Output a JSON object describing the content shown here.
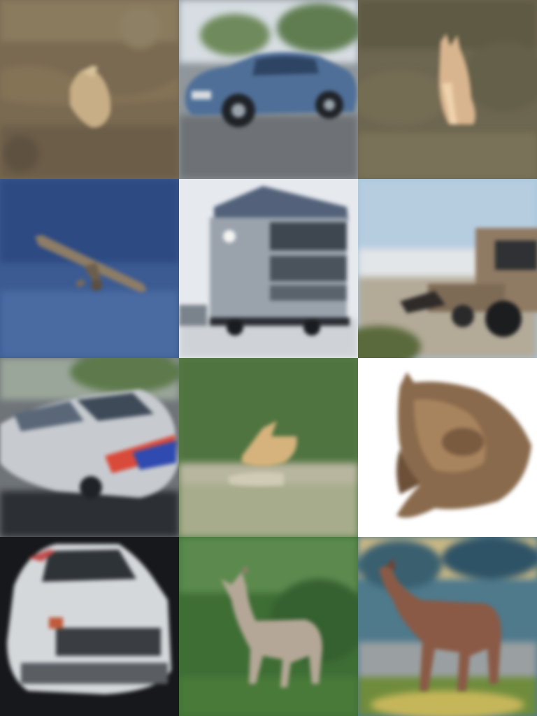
{
  "grid": {
    "rows": 4,
    "cols": 3,
    "tiles": [
      {
        "row": 0,
        "col": 0,
        "subject": "bird-on-dry-grass",
        "colors": {
          "bg": "#7a6a52",
          "subject": "#c8ae86"
        }
      },
      {
        "row": 0,
        "col": 1,
        "subject": "blue-car-on-road",
        "colors": {
          "bg": "#8f979c",
          "subject": "#4f6f98"
        }
      },
      {
        "row": 0,
        "col": 2,
        "subject": "animal-sitting-in-grass",
        "colors": {
          "bg": "#6d6650",
          "subject": "#d9b58f"
        }
      },
      {
        "row": 1,
        "col": 0,
        "subject": "airplane-in-blue-sky",
        "colors": {
          "bg": "#3c5b93",
          "subject": "#8e7d66"
        }
      },
      {
        "row": 1,
        "col": 1,
        "subject": "box-truck",
        "colors": {
          "bg": "#e6e9ee",
          "subject": "#9aa2ac"
        }
      },
      {
        "row": 1,
        "col": 2,
        "subject": "truck-on-beach",
        "colors": {
          "bg": "#a9c3d8",
          "subject": "#8f7a63"
        }
      },
      {
        "row": 2,
        "col": 0,
        "subject": "silver-police-car",
        "colors": {
          "bg": "#6f7479",
          "subject": "#c7cbd0"
        }
      },
      {
        "row": 2,
        "col": 1,
        "subject": "bird-in-green-field",
        "colors": {
          "bg": "#5c7d4a",
          "subject": "#d6b37d"
        }
      },
      {
        "row": 2,
        "col": 2,
        "subject": "cat-on-white",
        "colors": {
          "bg": "#ffffff",
          "subject": "#8a6a4c"
        }
      },
      {
        "row": 3,
        "col": 0,
        "subject": "white-car-front",
        "colors": {
          "bg": "#16181b",
          "subject": "#d5d8db"
        }
      },
      {
        "row": 3,
        "col": 1,
        "subject": "deer-in-green-grass",
        "colors": {
          "bg": "#3f6e35",
          "subject": "#b5a797"
        }
      },
      {
        "row": 3,
        "col": 2,
        "subject": "horse-in-painting",
        "colors": {
          "bg": "#4e7a8c",
          "subject": "#8a5a46"
        }
      }
    ]
  }
}
